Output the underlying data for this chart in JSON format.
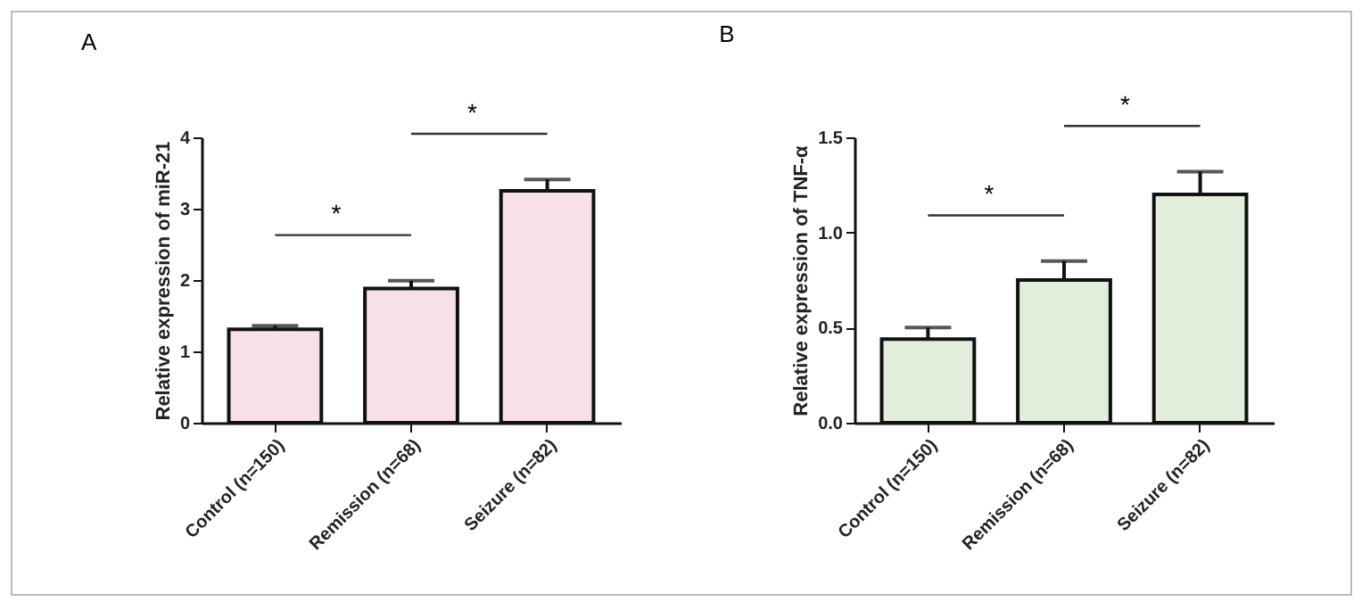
{
  "chart_data": [
    {
      "type": "bar",
      "title": "A",
      "ylabel": "Relative expression of miR-21",
      "categories": [
        "Control (n=150)",
        "Remission (n=68)",
        "Seizure (n=82)"
      ],
      "values": [
        1.31,
        1.88,
        3.25
      ],
      "errors": [
        [
          1.31,
          1.36
        ],
        [
          1.88,
          1.99
        ],
        [
          3.25,
          3.41
        ]
      ],
      "color": "#f6e1e8",
      "ylim": [
        0,
        4
      ],
      "yticks": [
        0,
        1,
        2,
        3,
        4
      ],
      "annotations": [
        "*",
        "*"
      ]
    },
    {
      "type": "bar",
      "title": "B",
      "ylabel": "Relative expression of TNF-α",
      "categories": [
        "Control (n=150)",
        "Remission (n=68)",
        "Seizure (n=82)"
      ],
      "values": [
        0.44,
        0.75,
        1.2
      ],
      "errors": [
        [
          0.44,
          0.5
        ],
        [
          0.75,
          0.85
        ],
        [
          1.2,
          1.32
        ]
      ],
      "color": "#e1eedb",
      "ylim": [
        0,
        1.5
      ],
      "yticks": [
        {
          "value": 0,
          "label": "0.0"
        },
        {
          "value": 0.5,
          "label": "0.5"
        },
        {
          "value": 1,
          "label": "1.0"
        },
        {
          "value": 1.5,
          "label": "1.5"
        }
      ],
      "annotations": [
        "*",
        "*"
      ]
    }
  ]
}
